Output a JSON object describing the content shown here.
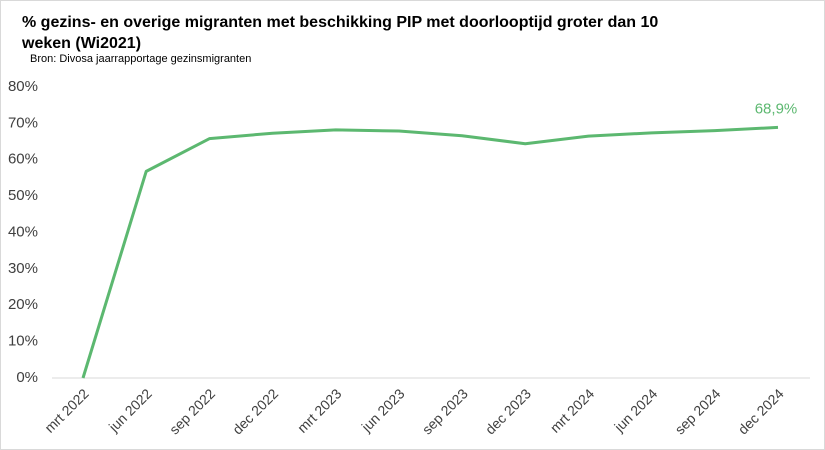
{
  "chart_data": {
    "type": "line",
    "title": [
      "% gezins- en overige migranten met beschikking PIP met doorlooptijd groter dan 10",
      "weken  (Wi2021)"
    ],
    "subtitle": "Bron: Divosa jaarrapportage gezinsmigranten",
    "categories": [
      "mrt 2022",
      "jun 2022",
      "sep 2022",
      "dec 2022",
      "mrt 2023",
      "jun 2023",
      "sep 2023",
      "dec 2023",
      "mrt 2024",
      "jun 2024",
      "sep 2024",
      "dec 2024"
    ],
    "series": [
      {
        "name": "% met doorlooptijd groter dan 10 weken",
        "color": "#5cb870",
        "values": [
          0,
          56.8,
          65.8,
          67.3,
          68.2,
          67.9,
          66.6,
          64.4,
          66.5,
          67.4,
          68.0,
          68.9
        ],
        "value_labels": [
          null,
          null,
          null,
          null,
          null,
          null,
          null,
          null,
          null,
          null,
          null,
          "68,9%"
        ]
      }
    ],
    "ylim": [
      0,
      80
    ],
    "yticks": [
      {
        "value": 0,
        "label": "0%"
      },
      {
        "value": 10,
        "label": "10%"
      },
      {
        "value": 20,
        "label": "20%"
      },
      {
        "value": 30,
        "label": "30%"
      },
      {
        "value": 40,
        "label": "40%"
      },
      {
        "value": 50,
        "label": "50%"
      },
      {
        "value": 60,
        "label": "60%"
      },
      {
        "value": 70,
        "label": "70%"
      },
      {
        "value": 80,
        "label": "80%"
      }
    ],
    "grid": false
  }
}
